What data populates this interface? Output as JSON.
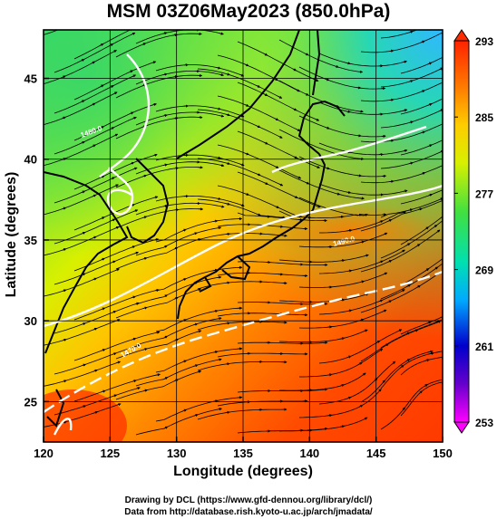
{
  "title": "MSM 03Z06May2023 (850.0hPa)",
  "xlabel": "Longitude (degrees)",
  "ylabel": "Latitude  (degrees)",
  "x_ticks": [
    "120",
    "125",
    "130",
    "135",
    "140",
    "145",
    "150"
  ],
  "y_ticks": [
    "45",
    "40",
    "35",
    "30",
    "25"
  ],
  "colorbar_ticks": [
    "293",
    "285",
    "277",
    "269",
    "261",
    "253"
  ],
  "contour_labels": [
    "1480.0",
    "1470.0",
    "1490.0"
  ],
  "credit_line1": "Drawing by DCL (https://www.gfd-dennou.org/library/dcl/)",
  "credit_line2": "Data from http://database.rish.kyoto-u.ac.jp/arch/jmadata/",
  "chart_data": {
    "type": "heatmap",
    "variable_range": [
      253,
      293
    ],
    "xlim": [
      120,
      150
    ],
    "ylim": [
      22.5,
      48
    ],
    "colormap": [
      "#ff00ff",
      "#0000cc",
      "#00bfff",
      "#00e070",
      "#c8ff00",
      "#ffcc00",
      "#ff2200"
    ]
  }
}
